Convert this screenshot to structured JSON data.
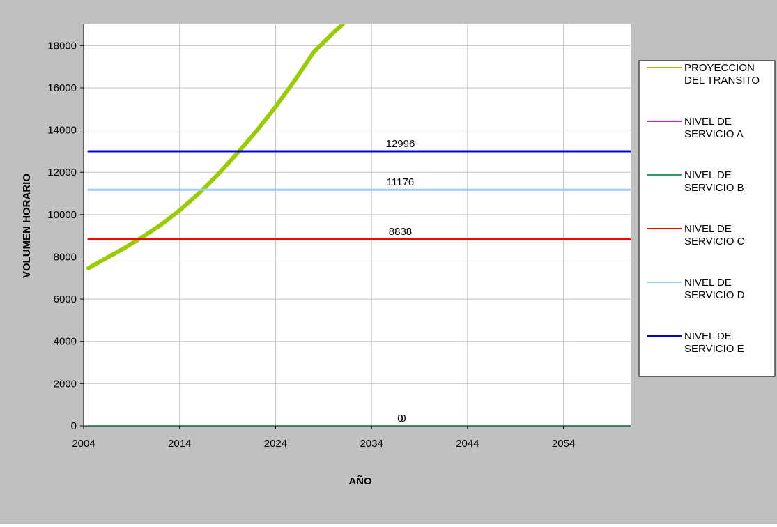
{
  "colors": {
    "chart_area_background": "#C0C0C0",
    "plot_background": "#FFFFFF",
    "gridline": "#C0C0C0",
    "legend_background": "#FFFFFF"
  },
  "chart_data": {
    "type": "line",
    "title": "",
    "xlabel": "AÑO",
    "ylabel": "VOLUMEN HORARIO",
    "xlim": [
      2004,
      2061
    ],
    "ylim": [
      0,
      19000
    ],
    "x_ticks": [
      "2004",
      "2014",
      "2024",
      "2034",
      "2044",
      "2054"
    ],
    "y_ticks": [
      "0",
      "2000",
      "4000",
      "6000",
      "8000",
      "10000",
      "12000",
      "14000",
      "16000",
      "18000"
    ],
    "grid": true,
    "legend_position": "right",
    "series": [
      {
        "name": "PROYECCION DEL TRANSITO",
        "color": "#99CC00",
        "x": [
          2004.5,
          2006,
          2008,
          2010,
          2012,
          2014,
          2016,
          2018,
          2020,
          2022,
          2024,
          2026,
          2028,
          2030,
          2031
        ],
        "y": [
          7460,
          7850,
          8350,
          8900,
          9500,
          10200,
          11000,
          11900,
          12900,
          13950,
          15100,
          16350,
          17700,
          18600,
          19000
        ]
      },
      {
        "name": "NIVEL DE SERVICIO A",
        "color": "#FF00FF",
        "x": [
          2004.5,
          2061
        ],
        "y": [
          0,
          0
        ],
        "label": "0"
      },
      {
        "name": "NIVEL DE SERVICIO B",
        "color": "#339966",
        "x": [
          2004.5,
          2061
        ],
        "y": [
          0,
          0
        ],
        "label": "0"
      },
      {
        "name": "NIVEL DE SERVICIO C",
        "color": "#FF0000",
        "x": [
          2004.5,
          2061
        ],
        "y": [
          8838,
          8838
        ],
        "label": "8838"
      },
      {
        "name": "NIVEL DE SERVICIO D",
        "color": "#99CCFF",
        "x": [
          2004.5,
          2061
        ],
        "y": [
          11176,
          11176
        ],
        "label": "11176"
      },
      {
        "name": "NIVEL DE SERVICIO E",
        "color": "#0000CC",
        "x": [
          2004.5,
          2061
        ],
        "y": [
          12996,
          12996
        ],
        "label": "12996"
      }
    ],
    "annotations": [
      {
        "text": "12996",
        "x": 2037,
        "y": 12996
      },
      {
        "text": "11176",
        "x": 2037,
        "y": 11176
      },
      {
        "text": "8838",
        "x": 2037,
        "y": 8838
      },
      {
        "text": "0",
        "x": 2037,
        "y": 0
      },
      {
        "text": "0",
        "x": 2037,
        "y": 0
      }
    ],
    "legend": [
      {
        "lines": [
          "PROYECCION",
          "DEL TRANSITO"
        ],
        "color": "#99CC00"
      },
      {
        "lines": [
          "NIVEL DE",
          "SERVICIO A"
        ],
        "color": "#FF00FF"
      },
      {
        "lines": [
          "NIVEL DE",
          "SERVICIO B"
        ],
        "color": "#339966"
      },
      {
        "lines": [
          "NIVEL DE",
          "SERVICIO C"
        ],
        "color": "#FF0000"
      },
      {
        "lines": [
          "NIVEL DE",
          "SERVICIO D"
        ],
        "color": "#99CCFF"
      },
      {
        "lines": [
          "NIVEL DE",
          "SERVICIO E"
        ],
        "color": "#0000CC"
      }
    ]
  }
}
